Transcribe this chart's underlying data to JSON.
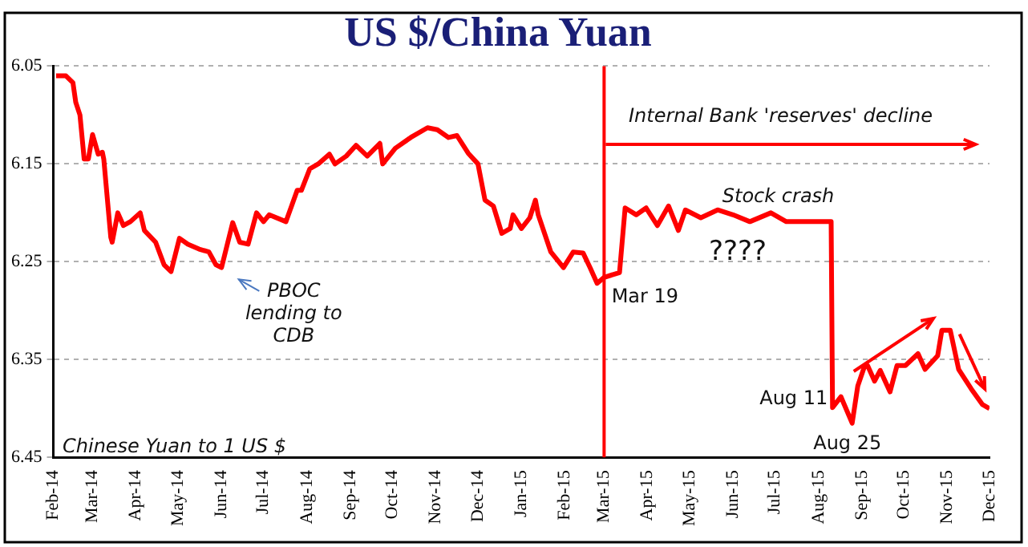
{
  "chart_data": {
    "type": "line",
    "title": "US $/China Yuan",
    "x": [
      "2014-02-03",
      "2014-02-10",
      "2014-02-15",
      "2014-02-17",
      "2014-02-20",
      "2014-02-23",
      "2014-02-26",
      "2014-03-01",
      "2014-03-05",
      "2014-03-08",
      "2014-03-09",
      "2014-03-14",
      "2014-03-15",
      "2014-03-19",
      "2014-03-23",
      "2014-03-28",
      "2014-04-04",
      "2014-04-07",
      "2014-04-15",
      "2014-04-21",
      "2014-04-26",
      "2014-05-02",
      "2014-05-08",
      "2014-05-16",
      "2014-05-23",
      "2014-05-28",
      "2014-06-01",
      "2014-06-09",
      "2014-06-14",
      "2014-06-20",
      "2014-06-26",
      "2014-07-01",
      "2014-07-05",
      "2014-07-17",
      "2014-07-25",
      "2014-07-28",
      "2014-08-03",
      "2014-08-09",
      "2014-08-17",
      "2014-08-21",
      "2014-08-29",
      "2014-09-05",
      "2014-09-13",
      "2014-09-22",
      "2014-09-24",
      "2014-10-03",
      "2014-10-14",
      "2014-10-26",
      "2014-11-02",
      "2014-11-10",
      "2014-11-16",
      "2014-11-24",
      "2014-12-01",
      "2014-12-06",
      "2014-12-12",
      "2014-12-18",
      "2014-12-24",
      "2014-12-26",
      "2015-01-01",
      "2015-01-07",
      "2015-01-11",
      "2015-01-13",
      "2015-01-22",
      "2015-01-31",
      "2015-02-07",
      "2015-02-14",
      "2015-02-19",
      "2015-02-24",
      "2015-03-01",
      "2015-03-12",
      "2015-03-16",
      "2015-03-24",
      "2015-03-31",
      "2015-04-08",
      "2015-04-16",
      "2015-04-23",
      "2015-04-28",
      "2015-05-09",
      "2015-05-21",
      "2015-06-01",
      "2015-06-13",
      "2015-06-28",
      "2015-07-09",
      "2015-08-06",
      "2015-08-10",
      "2015-08-11",
      "2015-08-17",
      "2015-08-25",
      "2015-08-29",
      "2015-09-03",
      "2015-09-05",
      "2015-09-10",
      "2015-09-14",
      "2015-09-21",
      "2015-09-26",
      "2015-10-02",
      "2015-10-11",
      "2015-10-16",
      "2015-10-25",
      "2015-10-28",
      "2015-11-03",
      "2015-11-09",
      "2015-11-18",
      "2015-11-26",
      "2015-12-01"
    ],
    "series": [
      {
        "color": "#ff0000",
        "values": [
          6.06,
          6.06,
          6.067,
          6.087,
          6.1,
          6.145,
          6.145,
          6.12,
          6.14,
          6.138,
          6.145,
          6.225,
          6.23,
          6.2,
          6.213,
          6.209,
          6.2,
          6.218,
          6.23,
          6.253,
          6.26,
          6.226,
          6.232,
          6.237,
          6.24,
          6.253,
          6.256,
          6.21,
          6.23,
          6.232,
          6.2,
          6.209,
          6.202,
          6.209,
          6.177,
          6.177,
          6.155,
          6.15,
          6.14,
          6.15,
          6.142,
          6.131,
          6.142,
          6.129,
          6.15,
          6.134,
          6.123,
          6.113,
          6.115,
          6.123,
          6.121,
          6.139,
          6.15,
          6.187,
          6.193,
          6.221,
          6.216,
          6.202,
          6.216,
          6.205,
          6.187,
          6.202,
          6.24,
          6.256,
          6.24,
          6.241,
          6.256,
          6.272,
          6.266,
          6.261,
          6.195,
          6.202,
          6.195,
          6.213,
          6.193,
          6.218,
          6.197,
          6.205,
          6.197,
          6.202,
          6.209,
          6.2,
          6.209,
          6.209,
          6.209,
          6.399,
          6.388,
          6.415,
          6.377,
          6.356,
          6.356,
          6.372,
          6.361,
          6.383,
          6.356,
          6.356,
          6.344,
          6.36,
          6.346,
          6.32,
          6.32,
          6.36,
          6.38,
          6.396,
          6.4
        ]
      }
    ],
    "xlim": [
      "2014-02-01",
      "2015-12-01"
    ],
    "xticks": [
      {
        "value": "2014-02-01",
        "label": "Feb-14"
      },
      {
        "value": "2014-03-01",
        "label": "Mar-14"
      },
      {
        "value": "2014-04-01",
        "label": "Apr-14"
      },
      {
        "value": "2014-05-01",
        "label": "May-14"
      },
      {
        "value": "2014-06-01",
        "label": "Jun-14"
      },
      {
        "value": "2014-07-01",
        "label": "Jul-14"
      },
      {
        "value": "2014-08-01",
        "label": "Aug-14"
      },
      {
        "value": "2014-09-01",
        "label": "Sep-14"
      },
      {
        "value": "2014-10-01",
        "label": "Oct-14"
      },
      {
        "value": "2014-11-01",
        "label": "Nov-14"
      },
      {
        "value": "2014-12-01",
        "label": "Dec-14"
      },
      {
        "value": "2015-01-01",
        "label": "Jan-15"
      },
      {
        "value": "2015-02-01",
        "label": "Feb-15"
      },
      {
        "value": "2015-03-01",
        "label": "Mar-15"
      },
      {
        "value": "2015-04-01",
        "label": "Apr-15"
      },
      {
        "value": "2015-05-01",
        "label": "May-15"
      },
      {
        "value": "2015-06-01",
        "label": "Jun-15"
      },
      {
        "value": "2015-07-01",
        "label": "Jul-15"
      },
      {
        "value": "2015-08-01",
        "label": "Aug-15"
      },
      {
        "value": "2015-09-01",
        "label": "Sep-15"
      },
      {
        "value": "2015-10-01",
        "label": "Oct-15"
      },
      {
        "value": "2015-11-01",
        "label": "Nov-15"
      },
      {
        "value": "2015-12-01",
        "label": "Dec-15"
      }
    ],
    "ylim": [
      6.45,
      6.05
    ],
    "yticks": [
      6.05,
      6.15,
      6.25,
      6.35,
      6.45
    ],
    "grid": "y",
    "legend": false,
    "marker": "none",
    "line_style": "solid",
    "ref_lines": [
      {
        "axis": "x",
        "value": "2015-03-01",
        "color": "#ff0000"
      }
    ],
    "annotations": [
      "Internal Bank 'reserves' decline",
      {
        "text": "Stock crash",
        "x": "2015-07-09",
        "y": 6.209
      },
      "????",
      {
        "text": "PBOC lending to CDB",
        "x": "2014-06-01",
        "y": 6.256
      },
      {
        "text": "Mar 19",
        "x": "2015-02-24",
        "y": 6.272
      },
      {
        "text": "Aug 11",
        "x": "2015-08-11",
        "y": 6.399
      },
      {
        "text": "Aug 25",
        "x": "2015-08-25",
        "y": 6.415
      },
      "Chinese Yuan to 1 US $"
    ]
  }
}
